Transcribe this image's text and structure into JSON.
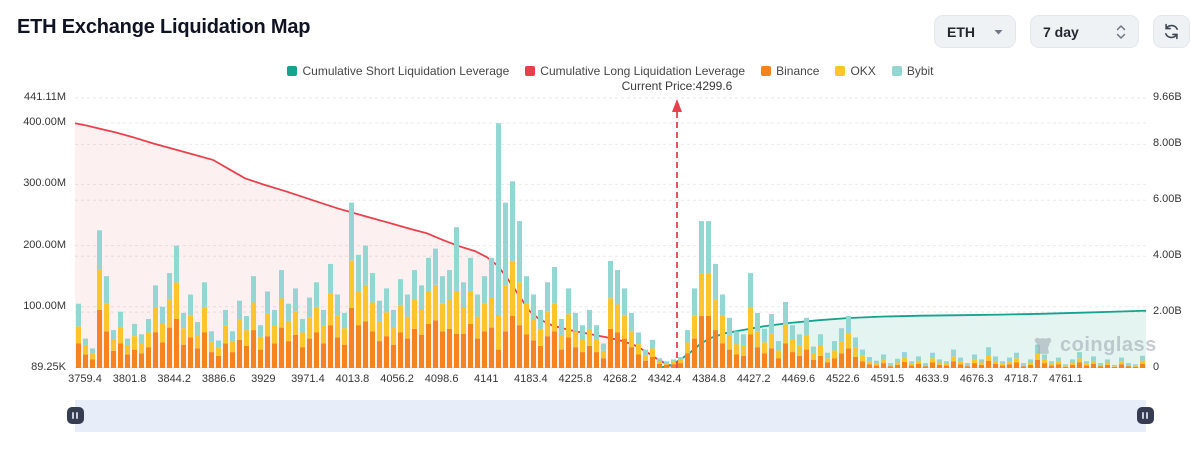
{
  "header": {
    "title": "ETH Exchange Liquidation Map"
  },
  "controls": {
    "symbol": "ETH",
    "range": "7 day"
  },
  "legend": {
    "items": [
      {
        "label": "Cumulative Short Liquidation Leverage",
        "color": "#17a28e"
      },
      {
        "label": "Cumulative Long Liquidation Leverage",
        "color": "#ea3e4b"
      },
      {
        "label": "Binance",
        "color": "#f5831f"
      },
      {
        "label": "OKX",
        "color": "#fcc42d"
      },
      {
        "label": "Bybit",
        "color": "#94d6d2"
      }
    ]
  },
  "annotation": {
    "current_price_label": "Current Price:4299.6",
    "current_price": 4299.6,
    "marker_x_offset": 602,
    "marker_color": "#e8414d"
  },
  "watermark": {
    "text": "coinglass"
  },
  "chart_data": {
    "type": "bar",
    "subtype": "stacked-bars-with-cumulative-lines",
    "title": "ETH Exchange Liquidation Map",
    "grid": true,
    "legend_position": "top-center",
    "left_axis": {
      "unit": "M",
      "max": 441.11,
      "ticks": [
        {
          "label": "441.11M",
          "v": 441.11
        },
        {
          "label": "400.00M",
          "v": 400
        },
        {
          "label": "300.00M",
          "v": 300
        },
        {
          "label": "200.00M",
          "v": 200
        },
        {
          "label": "100.00M",
          "v": 100
        },
        {
          "label": "89.25K",
          "v": 0.089
        }
      ]
    },
    "right_axis": {
      "unit": "B",
      "max": 9.66,
      "ticks": [
        {
          "label": "9.66B",
          "v": 9.66
        },
        {
          "label": "8.00B",
          "v": 8
        },
        {
          "label": "6.00B",
          "v": 6
        },
        {
          "label": "4.00B",
          "v": 4
        },
        {
          "label": "2.00B",
          "v": 2
        },
        {
          "label": "0",
          "v": 0
        }
      ]
    },
    "x_ticks": [
      "3759.4",
      "3801.8",
      "3844.2",
      "3886.6",
      "3929",
      "3971.4",
      "4013.8",
      "4056.2",
      "4098.6",
      "4141",
      "4183.4",
      "4225.8",
      "4268.2",
      "4342.4",
      "4384.8",
      "4427.2",
      "4469.6",
      "4522.6",
      "4591.5",
      "4633.9",
      "4676.3",
      "4718.7",
      "4761.1"
    ],
    "x_tick_start_offset": 10,
    "x_tick_spacing": 44.58,
    "bars_unit": "M",
    "bars_order": [
      "Binance",
      "OKX",
      "Bybit"
    ],
    "bars": [
      [
        40,
        28,
        37
      ],
      [
        22,
        14,
        12
      ],
      [
        14,
        10,
        8
      ],
      [
        95,
        65,
        65
      ],
      [
        60,
        45,
        45
      ],
      [
        28,
        18,
        16
      ],
      [
        40,
        26,
        26
      ],
      [
        22,
        14,
        12
      ],
      [
        30,
        22,
        20
      ],
      [
        24,
        16,
        15
      ],
      [
        34,
        24,
        22
      ],
      [
        58,
        40,
        37
      ],
      [
        42,
        30,
        28
      ],
      [
        66,
        46,
        43
      ],
      [
        80,
        60,
        60
      ],
      [
        38,
        27,
        25
      ],
      [
        50,
        36,
        34
      ],
      [
        32,
        22,
        21
      ],
      [
        58,
        42,
        40
      ],
      [
        26,
        18,
        16
      ],
      [
        20,
        13,
        12
      ],
      [
        40,
        29,
        26
      ],
      [
        26,
        18,
        16
      ],
      [
        46,
        33,
        31
      ],
      [
        36,
        26,
        23
      ],
      [
        62,
        45,
        43
      ],
      [
        30,
        21,
        19
      ],
      [
        52,
        38,
        35
      ],
      [
        40,
        29,
        26
      ],
      [
        66,
        48,
        46
      ],
      [
        44,
        32,
        29
      ],
      [
        54,
        39,
        37
      ],
      [
        34,
        24,
        22
      ],
      [
        48,
        35,
        32
      ],
      [
        58,
        42,
        40
      ],
      [
        40,
        29,
        26
      ],
      [
        70,
        52,
        48
      ],
      [
        50,
        36,
        34
      ],
      [
        38,
        27,
        25
      ],
      [
        98,
        78,
        94
      ],
      [
        70,
        55,
        60
      ],
      [
        76,
        60,
        64
      ],
      [
        60,
        47,
        48
      ],
      [
        44,
        33,
        33
      ],
      [
        52,
        39,
        39
      ],
      [
        38,
        28,
        29
      ],
      [
        58,
        44,
        43
      ],
      [
        48,
        36,
        36
      ],
      [
        64,
        48,
        48
      ],
      [
        54,
        41,
        40
      ],
      [
        72,
        54,
        54
      ],
      [
        78,
        58,
        59
      ],
      [
        60,
        45,
        45
      ],
      [
        64,
        48,
        48
      ],
      [
        56,
        70,
        104
      ],
      [
        56,
        42,
        42
      ],
      [
        72,
        54,
        54
      ],
      [
        48,
        36,
        36
      ],
      [
        60,
        45,
        45
      ],
      [
        66,
        50,
        64
      ],
      [
        30,
        55,
        315
      ],
      [
        60,
        75,
        135
      ],
      [
        85,
        90,
        130
      ],
      [
        70,
        70,
        100
      ],
      [
        55,
        50,
        45
      ],
      [
        45,
        35,
        40
      ],
      [
        36,
        28,
        31
      ],
      [
        52,
        40,
        48
      ],
      [
        60,
        45,
        60
      ],
      [
        30,
        24,
        26
      ],
      [
        50,
        38,
        42
      ],
      [
        34,
        26,
        30
      ],
      [
        26,
        20,
        24
      ],
      [
        36,
        28,
        31
      ],
      [
        26,
        20,
        24
      ],
      [
        16,
        12,
        12
      ],
      [
        64,
        50,
        61
      ],
      [
        58,
        46,
        56
      ],
      [
        48,
        38,
        44
      ],
      [
        34,
        26,
        30
      ],
      [
        22,
        17,
        19
      ],
      [
        12,
        9,
        9
      ],
      [
        18,
        14,
        14
      ],
      [
        7,
        5,
        4
      ],
      [
        5,
        3,
        3
      ],
      [
        6,
        4,
        4
      ],
      [
        8,
        5,
        5
      ],
      [
        24,
        18,
        20
      ],
      [
        48,
        38,
        44
      ],
      [
        85,
        70,
        85
      ],
      [
        85,
        70,
        85
      ],
      [
        62,
        50,
        58
      ],
      [
        40,
        45,
        35
      ],
      [
        30,
        24,
        28
      ],
      [
        22,
        17,
        21
      ],
      [
        20,
        16,
        19
      ],
      [
        55,
        44,
        56
      ],
      [
        34,
        26,
        30
      ],
      [
        24,
        18,
        22
      ],
      [
        32,
        25,
        31
      ],
      [
        16,
        13,
        15
      ],
      [
        40,
        31,
        37
      ],
      [
        26,
        20,
        24
      ],
      [
        20,
        16,
        19
      ],
      [
        30,
        24,
        28
      ],
      [
        13,
        10,
        12
      ],
      [
        20,
        16,
        19
      ],
      [
        9,
        7,
        9
      ],
      [
        16,
        13,
        15
      ],
      [
        24,
        19,
        22
      ],
      [
        32,
        25,
        28
      ],
      [
        18,
        15,
        17
      ],
      [
        11,
        9,
        10
      ],
      [
        6,
        5,
        7
      ],
      [
        4,
        3,
        5
      ],
      [
        8,
        6,
        8
      ],
      [
        3,
        2,
        3
      ],
      [
        5,
        4,
        6
      ],
      [
        10,
        7,
        9
      ],
      [
        4,
        3,
        4
      ],
      [
        7,
        5,
        7
      ],
      [
        3,
        2,
        3
      ],
      [
        9,
        7,
        9
      ],
      [
        5,
        4,
        5
      ],
      [
        4,
        3,
        4
      ],
      [
        11,
        8,
        11
      ],
      [
        6,
        5,
        6
      ],
      [
        3,
        2,
        3
      ],
      [
        8,
        6,
        8
      ],
      [
        5,
        4,
        5
      ],
      [
        12,
        9,
        13
      ],
      [
        7,
        5,
        7
      ],
      [
        4,
        3,
        4
      ],
      [
        6,
        5,
        6
      ],
      [
        9,
        7,
        9
      ],
      [
        3,
        2,
        3
      ],
      [
        5,
        4,
        5
      ],
      [
        13,
        10,
        15
      ],
      [
        8,
        6,
        8
      ],
      [
        4,
        3,
        4
      ],
      [
        6,
        5,
        6
      ],
      [
        2,
        2,
        2
      ],
      [
        5,
        4,
        5
      ],
      [
        9,
        7,
        10
      ],
      [
        4,
        3,
        4
      ],
      [
        7,
        5,
        7
      ],
      [
        3,
        2,
        3
      ],
      [
        5,
        4,
        5
      ],
      [
        2,
        1,
        2
      ],
      [
        6,
        5,
        6
      ],
      [
        3,
        2,
        3
      ],
      [
        2,
        2,
        2
      ],
      [
        7,
        5,
        8
      ]
    ],
    "long_line": {
      "name": "Cumulative Long Liquidation Leverage",
      "unit": "M",
      "color": "#e8414d",
      "fill": "rgba(232,65,77,0.08)",
      "points": [
        [
          0,
          400
        ],
        [
          12,
          396
        ],
        [
          25,
          391
        ],
        [
          40,
          385
        ],
        [
          58,
          377
        ],
        [
          78,
          367
        ],
        [
          98,
          358
        ],
        [
          118,
          349
        ],
        [
          138,
          340
        ],
        [
          155,
          324
        ],
        [
          170,
          310
        ],
        [
          188,
          300
        ],
        [
          212,
          288
        ],
        [
          238,
          274
        ],
        [
          262,
          261
        ],
        [
          288,
          249
        ],
        [
          312,
          238
        ],
        [
          336,
          227
        ],
        [
          352,
          220
        ],
        [
          368,
          209
        ],
        [
          384,
          199
        ],
        [
          400,
          191
        ],
        [
          412,
          181
        ],
        [
          422,
          168
        ],
        [
          430,
          152
        ],
        [
          438,
          133
        ],
        [
          446,
          114
        ],
        [
          454,
          94
        ],
        [
          464,
          80
        ],
        [
          478,
          69
        ],
        [
          495,
          62
        ],
        [
          513,
          56
        ],
        [
          532,
          50
        ],
        [
          548,
          44
        ],
        [
          560,
          37
        ],
        [
          571,
          27
        ],
        [
          582,
          15
        ],
        [
          592,
          6
        ],
        [
          602,
          1
        ]
      ]
    },
    "short_line": {
      "name": "Cumulative Short Liquidation Leverage",
      "unit": "B",
      "color": "#17a28e",
      "fill": "rgba(23,162,142,0.12)",
      "points": [
        [
          587,
          0.03
        ],
        [
          596,
          0.1
        ],
        [
          606,
          0.32
        ],
        [
          616,
          0.58
        ],
        [
          626,
          0.88
        ],
        [
          636,
          1.08
        ],
        [
          650,
          1.24
        ],
        [
          668,
          1.36
        ],
        [
          688,
          1.49
        ],
        [
          714,
          1.61
        ],
        [
          744,
          1.71
        ],
        [
          774,
          1.79
        ],
        [
          806,
          1.84
        ],
        [
          846,
          1.87
        ],
        [
          886,
          1.89
        ],
        [
          926,
          1.91
        ],
        [
          966,
          1.94
        ],
        [
          1006,
          1.98
        ],
        [
          1046,
          2.02
        ],
        [
          1071,
          2.05
        ]
      ]
    }
  }
}
